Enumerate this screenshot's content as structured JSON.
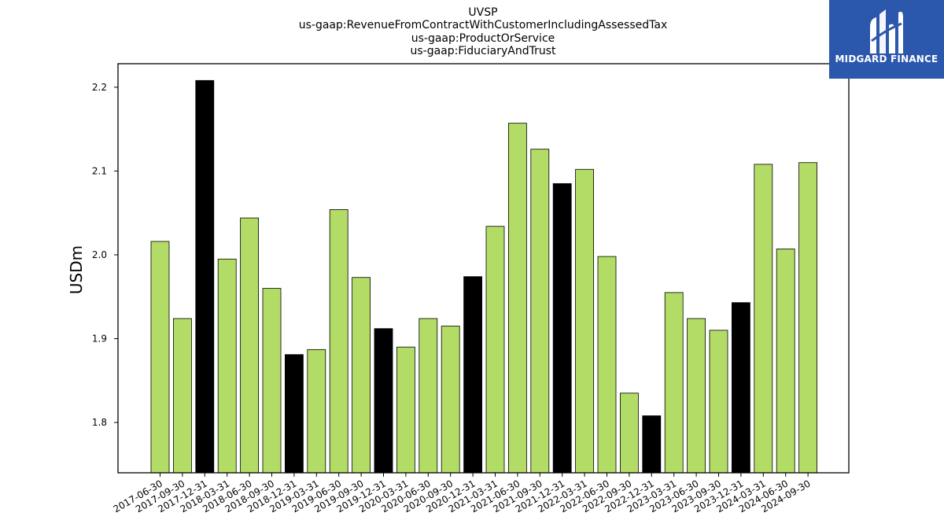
{
  "chart_data": {
    "type": "bar",
    "title_lines": [
      "UVSP",
      "us-gaap:RevenueFromContractWithCustomerIncludingAssessedTax",
      "us-gaap:ProductOrService",
      "us-gaap:FiduciaryAndTrust"
    ],
    "ylabel": "USDm",
    "ylim": [
      1.74,
      2.228
    ],
    "yticks": [
      1.8,
      1.9,
      2.0,
      2.1,
      2.2
    ],
    "ytick_labels": [
      "1.8",
      "1.9",
      "2.0",
      "2.1",
      "2.2"
    ],
    "categories": [
      "2017-06-30",
      "2017-09-30",
      "2017-12-31",
      "2018-03-31",
      "2018-06-30",
      "2018-09-30",
      "2018-12-31",
      "2019-03-31",
      "2019-06-30",
      "2019-09-30",
      "2019-12-31",
      "2020-03-31",
      "2020-06-30",
      "2020-09-30",
      "2020-12-31",
      "2021-03-31",
      "2021-06-30",
      "2021-09-30",
      "2021-12-31",
      "2022-03-31",
      "2022-06-30",
      "2022-09-30",
      "2022-12-31",
      "2023-03-31",
      "2023-06-30",
      "2023-09-30",
      "2023-12-31",
      "2024-03-31",
      "2024-06-30",
      "2024-09-30"
    ],
    "values": [
      2.016,
      1.924,
      2.208,
      1.995,
      2.044,
      1.96,
      1.881,
      1.887,
      2.054,
      1.973,
      1.912,
      1.89,
      1.924,
      1.915,
      1.974,
      2.034,
      2.157,
      2.126,
      2.085,
      2.102,
      1.998,
      1.835,
      1.808,
      1.955,
      1.924,
      1.91,
      1.943,
      2.108,
      2.007,
      2.11
    ],
    "highlight_q4": [
      false,
      false,
      true,
      false,
      false,
      false,
      true,
      false,
      false,
      false,
      true,
      false,
      false,
      false,
      true,
      false,
      false,
      false,
      true,
      false,
      false,
      false,
      true,
      false,
      false,
      false,
      true,
      false,
      false,
      false
    ],
    "colors": {
      "bar": "#b2dc66",
      "highlight": "#000000",
      "edge": "#000000"
    },
    "grid": false,
    "legend": "none"
  },
  "logo": {
    "text": "MIDGARD FINANCE",
    "background": "#2b57ad",
    "icon": "midgard-logo-icon"
  }
}
